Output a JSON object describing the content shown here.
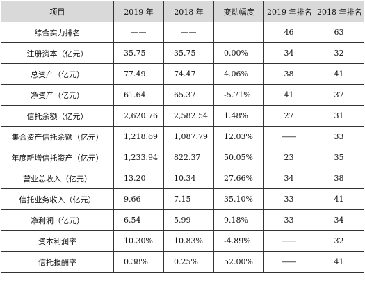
{
  "table": {
    "headers": [
      "项目",
      "2019 年",
      "2018 年",
      "变动幅度",
      "2019 年排名",
      "2018 年排名"
    ],
    "rows": [
      {
        "item": "综合实力排名",
        "v2019": "——",
        "v2018": "——",
        "change": "",
        "rank2019": "46",
        "rank2018": "63"
      },
      {
        "item": "注册资本（亿元）",
        "v2019": "35.75",
        "v2018": "35.75",
        "change": "0.00%",
        "rank2019": "34",
        "rank2018": "32"
      },
      {
        "item": "总资产（亿元）",
        "v2019": "77.49",
        "v2018": "74.47",
        "change": "4.06%",
        "rank2019": "38",
        "rank2018": "41"
      },
      {
        "item": "净资产（亿元）",
        "v2019": "61.64",
        "v2018": "65.37",
        "change": "-5.71%",
        "rank2019": "41",
        "rank2018": "37"
      },
      {
        "item": "信托余额（亿元）",
        "v2019": "2,620.76",
        "v2018": "2,582.54",
        "change": "1.48%",
        "rank2019": "27",
        "rank2018": "31"
      },
      {
        "item": "集合资产信托余额（亿元）",
        "v2019": "1,218.69",
        "v2018": "1,087.79",
        "change": "12.03%",
        "rank2019": "——",
        "rank2018": "33"
      },
      {
        "item": "年度新增信托资产（亿元）",
        "v2019": "1,233.94",
        "v2018": "822.37",
        "change": "50.05%",
        "rank2019": "23",
        "rank2018": "35"
      },
      {
        "item": "营业总收入（亿元）",
        "v2019": "13.20",
        "v2018": "10.34",
        "change": "27.66%",
        "rank2019": "34",
        "rank2018": "38"
      },
      {
        "item": "信托业务收入（亿元）",
        "v2019": "9.66",
        "v2018": "7.15",
        "change": "35.10%",
        "rank2019": "33",
        "rank2018": "41"
      },
      {
        "item": "净利润（亿元）",
        "v2019": "6.54",
        "v2018": "5.99",
        "change": "9.18%",
        "rank2019": "33",
        "rank2018": "34"
      },
      {
        "item": "资本利润率",
        "v2019": "10.30%",
        "v2018": "10.83%",
        "change": "-4.89%",
        "rank2019": "——",
        "rank2018": "32"
      },
      {
        "item": "信托报酬率",
        "v2019": "0.38%",
        "v2018": "0.25%",
        "change": "52.00%",
        "rank2019": "——",
        "rank2018": "41"
      }
    ]
  }
}
